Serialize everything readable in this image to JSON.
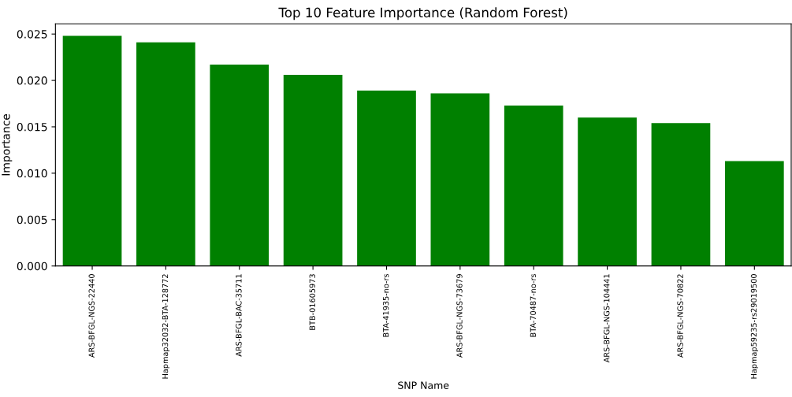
{
  "chart_data": {
    "type": "bar",
    "title": "Top 10 Feature Importance (Random Forest)",
    "xlabel": "SNP Name",
    "ylabel": "Importance",
    "categories": [
      "ARS-BFGL-NGS-22440",
      "Hapmap32032-BTA-128772",
      "ARS-BFGL-BAC-35711",
      "BTB-01605973",
      "BTA-41935-no-rs",
      "ARS-BFGL-NGS-73679",
      "BTA-70487-no-rs",
      "ARS-BFGL-NGS-104441",
      "ARS-BFGL-NGS-70822",
      "Hapmap59235-rs29019500"
    ],
    "values": [
      0.0248,
      0.0241,
      0.0217,
      0.0206,
      0.0189,
      0.0186,
      0.0173,
      0.016,
      0.0154,
      0.0113
    ],
    "color": "#008000",
    "ylim": [
      0,
      0.0261
    ],
    "yticks": [
      {
        "value": 0,
        "label": "0.000"
      },
      {
        "value": 0.005,
        "label": "0.005"
      },
      {
        "value": 0.01,
        "label": "0.010"
      },
      {
        "value": 0.015,
        "label": "0.015"
      },
      {
        "value": 0.02,
        "label": "0.020"
      },
      {
        "value": 0.025,
        "label": "0.025"
      }
    ],
    "grid": false
  }
}
